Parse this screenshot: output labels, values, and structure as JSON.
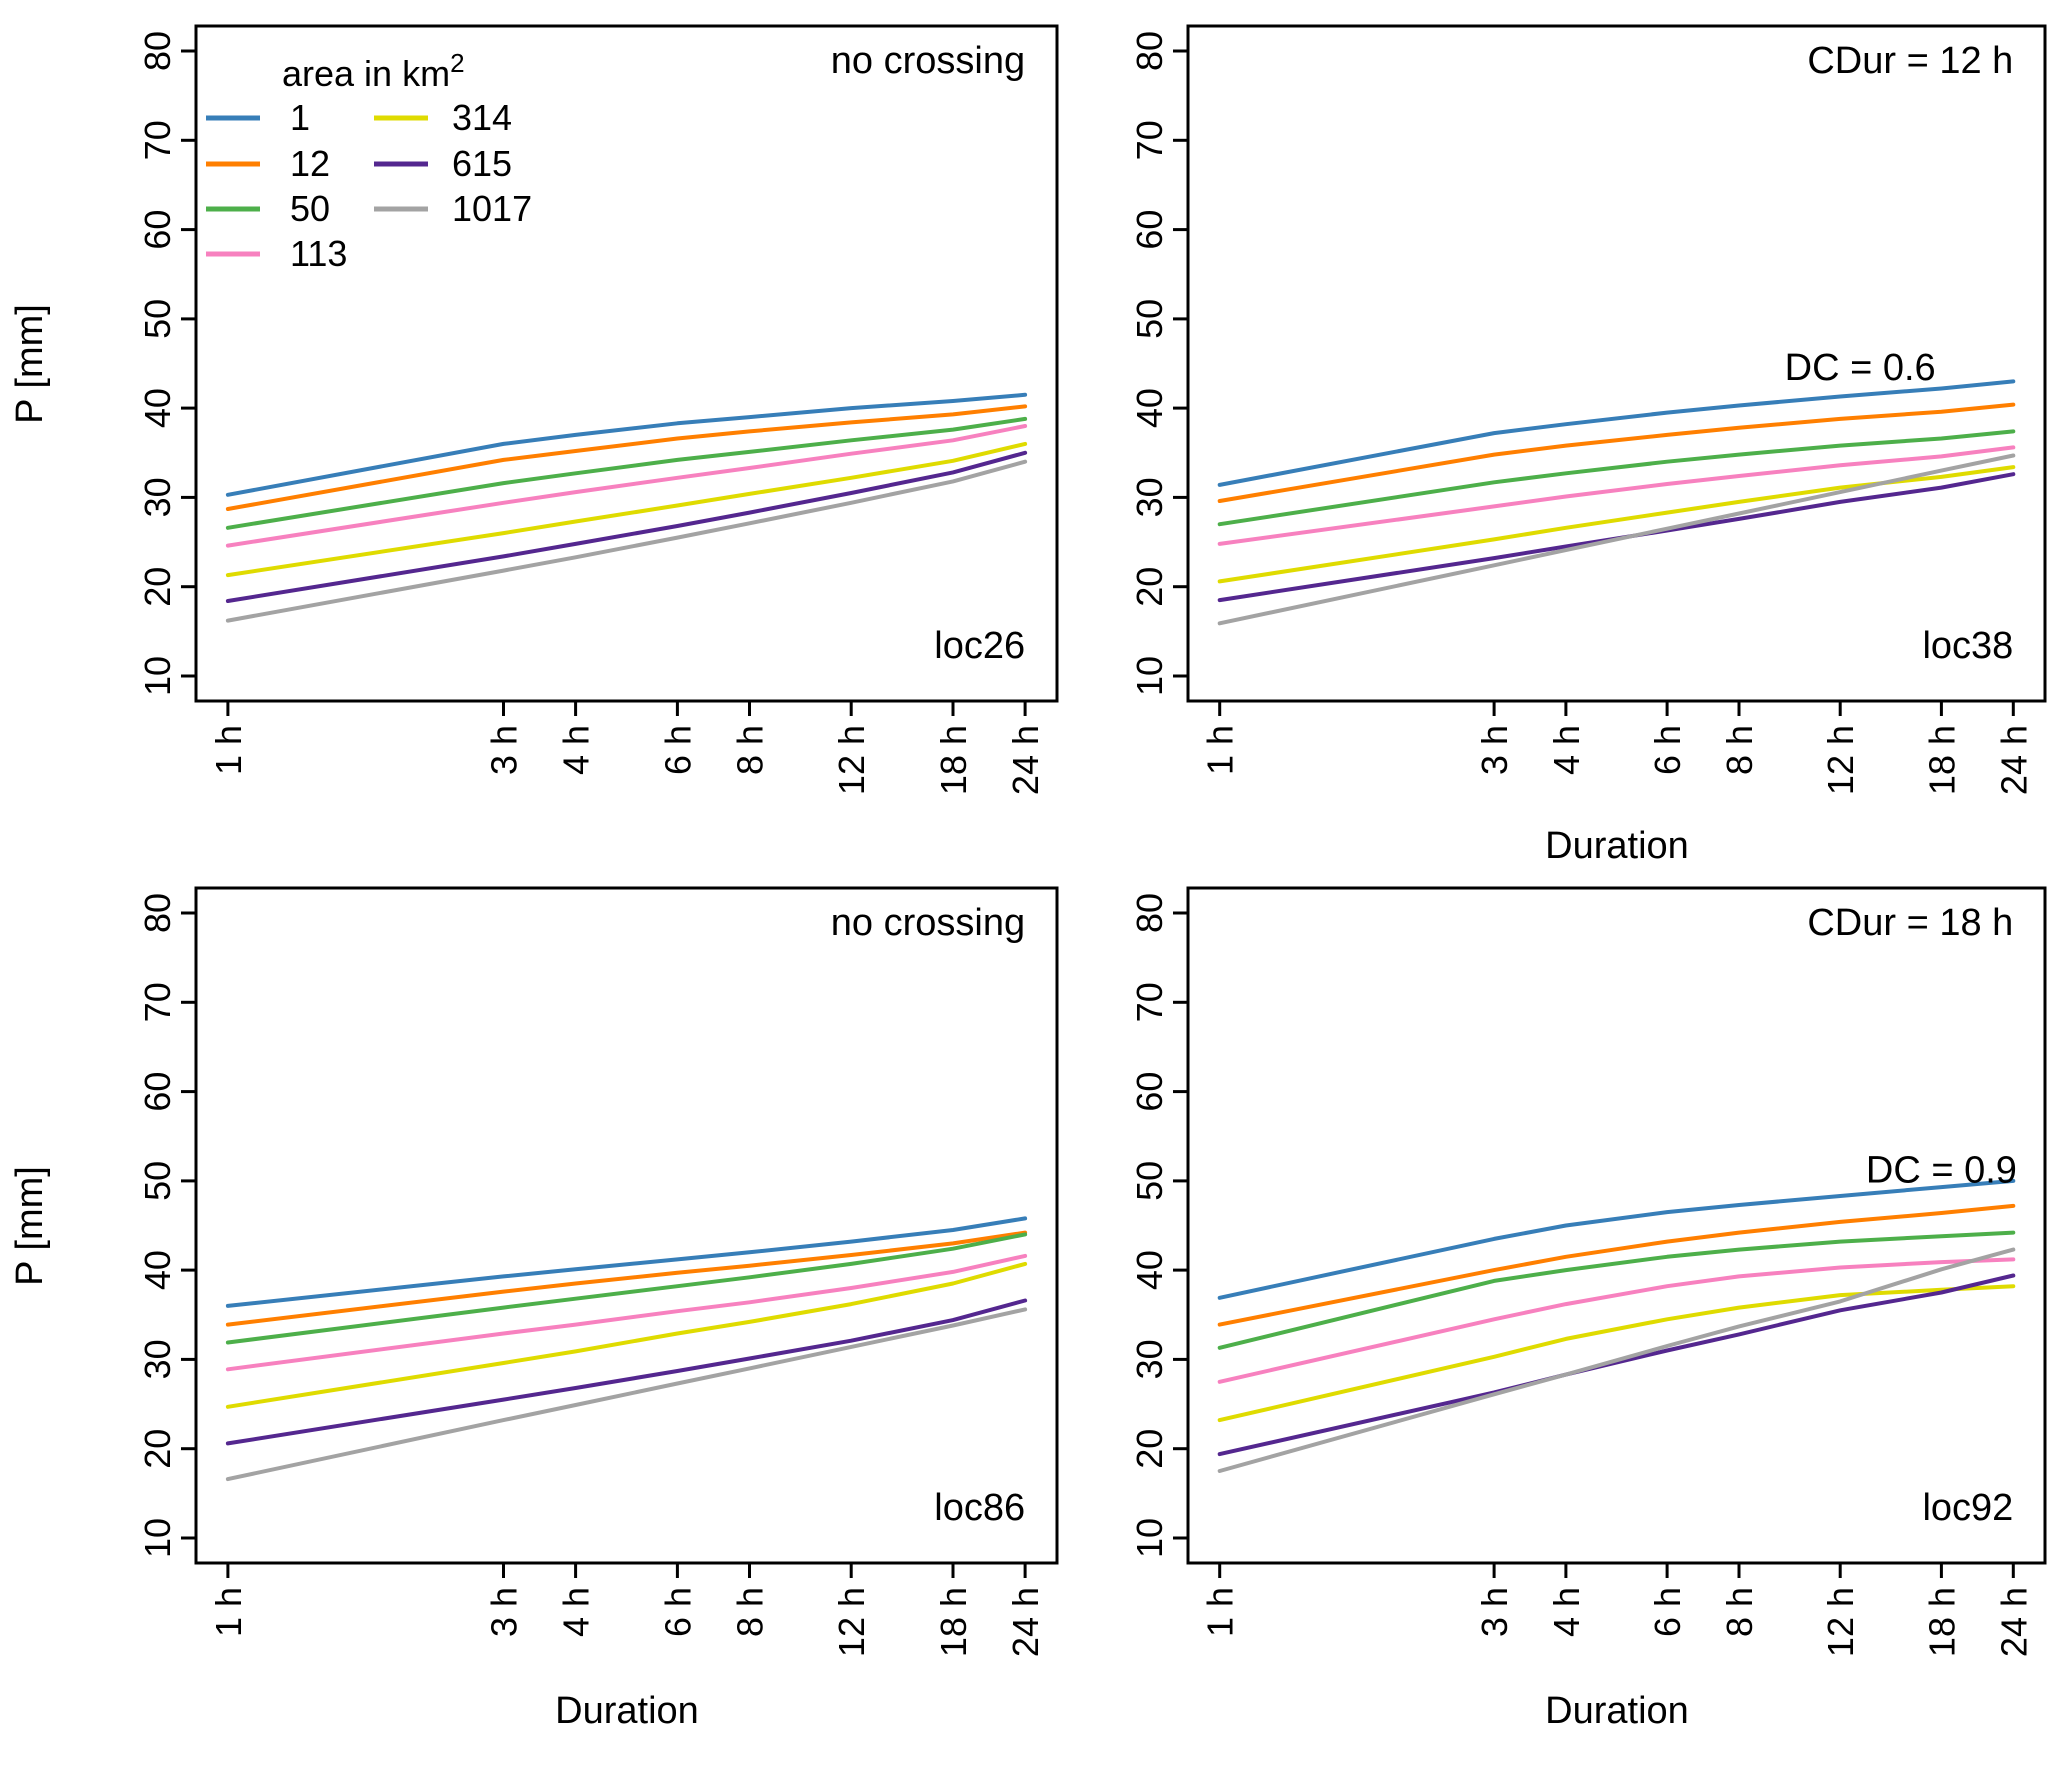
{
  "figure": {
    "ylabel": "P [mm]",
    "xlabel": "Duration",
    "y_ticks": [
      10,
      20,
      30,
      40,
      50,
      60,
      70,
      80
    ],
    "x_ticks_hours": [
      1,
      3,
      4,
      6,
      8,
      12,
      18,
      24
    ],
    "x_tick_labels": [
      "1 h",
      "3 h",
      "4 h",
      "6 h",
      "8 h",
      "12 h",
      "18 h",
      "24 h"
    ],
    "legend": {
      "title_prefix": "area in  ",
      "title_unit": "km",
      "title_exponent": "2",
      "entries": [
        {
          "label": "1",
          "color": "#377eb8"
        },
        {
          "label": "12",
          "color": "#ff7f00"
        },
        {
          "label": "50",
          "color": "#4daf4a"
        },
        {
          "label": "113",
          "color": "#f781bf"
        },
        {
          "label": "314",
          "color": "#dfdb00"
        },
        {
          "label": "615",
          "color": "#54278f"
        },
        {
          "label": "1017",
          "color": "#a3a3a3"
        }
      ]
    }
  },
  "chart_data": [
    {
      "type": "line",
      "id": "loc26",
      "title": "",
      "xlabel": "",
      "ylabel": "P [mm]",
      "x_scale": "log",
      "x_hours": [
        1,
        3,
        4,
        6,
        8,
        12,
        18,
        24
      ],
      "ylim": [
        10,
        80
      ],
      "legend_position": "top-left-inside",
      "annotations": [
        {
          "text": "no crossing",
          "x_h": 24,
          "y_mm": 79,
          "align": "end"
        },
        {
          "text": "loc26",
          "x_h": 24,
          "y_mm": 13.5,
          "align": "end"
        }
      ],
      "series": [
        {
          "name": "1",
          "color": "#377eb8",
          "values": [
            30.3,
            36.0,
            37.0,
            38.3,
            39.0,
            40.0,
            40.8,
            41.5
          ]
        },
        {
          "name": "12",
          "color": "#ff7f00",
          "values": [
            28.7,
            34.2,
            35.2,
            36.6,
            37.4,
            38.4,
            39.3,
            40.2
          ]
        },
        {
          "name": "50",
          "color": "#4daf4a",
          "values": [
            26.6,
            31.6,
            32.7,
            34.2,
            35.1,
            36.4,
            37.6,
            38.8
          ]
        },
        {
          "name": "113",
          "color": "#f781bf",
          "values": [
            24.6,
            29.4,
            30.6,
            32.2,
            33.3,
            34.9,
            36.4,
            38.0
          ]
        },
        {
          "name": "314",
          "color": "#dfdb00",
          "values": [
            21.3,
            26.0,
            27.3,
            29.1,
            30.4,
            32.2,
            34.1,
            36.0
          ]
        },
        {
          "name": "615",
          "color": "#54278f",
          "values": [
            18.4,
            23.4,
            24.8,
            26.8,
            28.3,
            30.5,
            32.8,
            35.0
          ]
        },
        {
          "name": "1017",
          "color": "#a3a3a3",
          "values": [
            16.2,
            21.8,
            23.3,
            25.5,
            27.1,
            29.4,
            31.8,
            34.0
          ]
        }
      ]
    },
    {
      "type": "line",
      "id": "loc38",
      "title": "",
      "xlabel": "Duration",
      "ylabel": "",
      "x_scale": "log",
      "x_hours": [
        1,
        3,
        4,
        6,
        8,
        12,
        18,
        24
      ],
      "ylim": [
        10,
        80
      ],
      "annotations": [
        {
          "text": "CDur = 12 h",
          "x_h": 24,
          "y_mm": 79,
          "align": "end"
        },
        {
          "text": "DC = 0.6",
          "x_h": 13,
          "y_mm": 44.6,
          "align": "middle"
        },
        {
          "text": "loc38",
          "x_h": 24,
          "y_mm": 13.5,
          "align": "end"
        }
      ],
      "series": [
        {
          "name": "1",
          "color": "#377eb8",
          "values": [
            31.4,
            37.2,
            38.2,
            39.5,
            40.3,
            41.3,
            42.2,
            43.0
          ]
        },
        {
          "name": "12",
          "color": "#ff7f00",
          "values": [
            29.6,
            34.8,
            35.8,
            37.0,
            37.8,
            38.8,
            39.6,
            40.4
          ]
        },
        {
          "name": "50",
          "color": "#4daf4a",
          "values": [
            27.0,
            31.7,
            32.7,
            34.0,
            34.8,
            35.8,
            36.6,
            37.4
          ]
        },
        {
          "name": "113",
          "color": "#f781bf",
          "values": [
            24.8,
            29.0,
            30.1,
            31.5,
            32.4,
            33.6,
            34.6,
            35.6
          ]
        },
        {
          "name": "314",
          "color": "#dfdb00",
          "values": [
            20.6,
            25.3,
            26.6,
            28.3,
            29.5,
            31.1,
            32.3,
            33.4
          ]
        },
        {
          "name": "615",
          "color": "#54278f",
          "values": [
            18.5,
            23.2,
            24.5,
            26.3,
            27.6,
            29.5,
            31.1,
            32.6
          ]
        },
        {
          "name": "1017",
          "color": "#a3a3a3",
          "values": [
            15.9,
            22.4,
            24.1,
            26.5,
            28.2,
            30.6,
            33.0,
            34.7
          ]
        }
      ]
    },
    {
      "type": "line",
      "id": "loc86",
      "title": "",
      "xlabel": "Duration",
      "ylabel": "P [mm]",
      "x_scale": "log",
      "x_hours": [
        1,
        3,
        4,
        6,
        8,
        12,
        18,
        24
      ],
      "ylim": [
        10,
        80
      ],
      "annotations": [
        {
          "text": "no crossing",
          "x_h": 24,
          "y_mm": 79,
          "align": "end"
        },
        {
          "text": "loc86",
          "x_h": 24,
          "y_mm": 13.5,
          "align": "end"
        }
      ],
      "series": [
        {
          "name": "1",
          "color": "#377eb8",
          "values": [
            36.0,
            39.3,
            40.1,
            41.2,
            42.0,
            43.2,
            44.5,
            45.8
          ]
        },
        {
          "name": "12",
          "color": "#ff7f00",
          "values": [
            33.9,
            37.6,
            38.5,
            39.7,
            40.5,
            41.7,
            43.0,
            44.2
          ]
        },
        {
          "name": "50",
          "color": "#4daf4a",
          "values": [
            31.9,
            35.8,
            36.8,
            38.2,
            39.2,
            40.7,
            42.4,
            44.0
          ]
        },
        {
          "name": "113",
          "color": "#f781bf",
          "values": [
            28.9,
            32.9,
            33.9,
            35.4,
            36.4,
            38.0,
            39.8,
            41.6
          ]
        },
        {
          "name": "314",
          "color": "#dfdb00",
          "values": [
            24.7,
            29.6,
            30.9,
            32.9,
            34.2,
            36.2,
            38.5,
            40.7
          ]
        },
        {
          "name": "615",
          "color": "#54278f",
          "values": [
            20.6,
            25.5,
            26.8,
            28.7,
            30.1,
            32.1,
            34.4,
            36.6
          ]
        },
        {
          "name": "1017",
          "color": "#a3a3a3",
          "values": [
            16.6,
            23.2,
            24.9,
            27.3,
            29.0,
            31.4,
            33.8,
            35.6
          ]
        }
      ]
    },
    {
      "type": "line",
      "id": "loc92",
      "title": "",
      "xlabel": "Duration",
      "ylabel": "",
      "x_scale": "log",
      "x_hours": [
        1,
        3,
        4,
        6,
        8,
        12,
        18,
        24
      ],
      "ylim": [
        10,
        80
      ],
      "annotations": [
        {
          "text": "CDur = 18 h",
          "x_h": 24,
          "y_mm": 79,
          "align": "end"
        },
        {
          "text": "DC = 0.9",
          "x_h": 18,
          "y_mm": 51.3,
          "align": "middle"
        },
        {
          "text": "loc92",
          "x_h": 24,
          "y_mm": 13.5,
          "align": "end"
        }
      ],
      "series": [
        {
          "name": "1",
          "color": "#377eb8",
          "values": [
            36.9,
            43.5,
            45.0,
            46.5,
            47.3,
            48.3,
            49.3,
            50.0
          ]
        },
        {
          "name": "12",
          "color": "#ff7f00",
          "values": [
            33.9,
            40.0,
            41.5,
            43.2,
            44.2,
            45.4,
            46.4,
            47.2
          ]
        },
        {
          "name": "50",
          "color": "#4daf4a",
          "values": [
            31.3,
            38.8,
            40.0,
            41.5,
            42.3,
            43.2,
            43.8,
            44.2
          ]
        },
        {
          "name": "113",
          "color": "#f781bf",
          "values": [
            27.5,
            34.5,
            36.2,
            38.2,
            39.3,
            40.3,
            40.9,
            41.2
          ]
        },
        {
          "name": "314",
          "color": "#dfdb00",
          "values": [
            23.2,
            30.3,
            32.3,
            34.5,
            35.8,
            37.2,
            37.8,
            38.2
          ]
        },
        {
          "name": "615",
          "color": "#54278f",
          "values": [
            19.4,
            26.3,
            28.3,
            31.0,
            32.8,
            35.5,
            37.5,
            39.4
          ]
        },
        {
          "name": "1017",
          "color": "#a3a3a3",
          "values": [
            17.5,
            26.1,
            28.3,
            31.5,
            33.7,
            36.5,
            40.1,
            42.3
          ]
        }
      ]
    }
  ]
}
